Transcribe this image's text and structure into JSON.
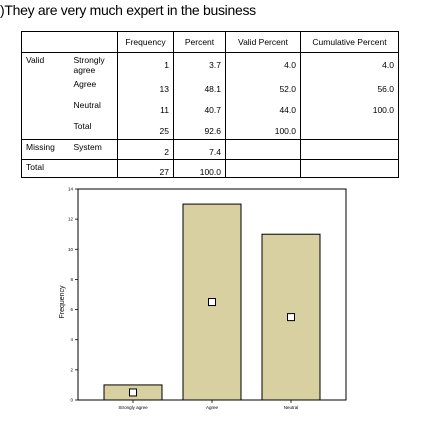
{
  "title": ")They are very much expert in the business",
  "table": {
    "headers": [
      "Frequency",
      "Percent",
      "Valid Percent",
      "Cumulative Percent"
    ],
    "rows": [
      {
        "group": "Valid",
        "label": "Strongly agree",
        "frequency": "1",
        "percent": "3.7",
        "valid_percent": "4.0",
        "cumulative_percent": "4.0"
      },
      {
        "group": "",
        "label": "Agree",
        "frequency": "13",
        "percent": "48.1",
        "valid_percent": "52.0",
        "cumulative_percent": "56.0"
      },
      {
        "group": "",
        "label": "Neutral",
        "frequency": "11",
        "percent": "40.7",
        "valid_percent": "44.0",
        "cumulative_percent": "100.0"
      },
      {
        "group": "",
        "label": "Total",
        "frequency": "25",
        "percent": "92.6",
        "valid_percent": "100.0",
        "cumulative_percent": ""
      },
      {
        "group": "Missing",
        "label": "System",
        "frequency": "2",
        "percent": "7.4",
        "valid_percent": "",
        "cumulative_percent": ""
      },
      {
        "group": "Total",
        "label": "",
        "frequency": "27",
        "percent": "100.0",
        "valid_percent": "",
        "cumulative_percent": ""
      }
    ]
  },
  "chart_data": {
    "type": "bar",
    "categories": [
      "Strongly agree",
      "Agree",
      "Neutral"
    ],
    "values": [
      1,
      13,
      11
    ],
    "ylabel": "Frequency",
    "xlabel": "",
    "ylim": [
      0,
      14
    ],
    "yticks": [
      0,
      2,
      4,
      6,
      8,
      10,
      12,
      14
    ],
    "bar_color": "#d8d0a0",
    "grid": false
  }
}
